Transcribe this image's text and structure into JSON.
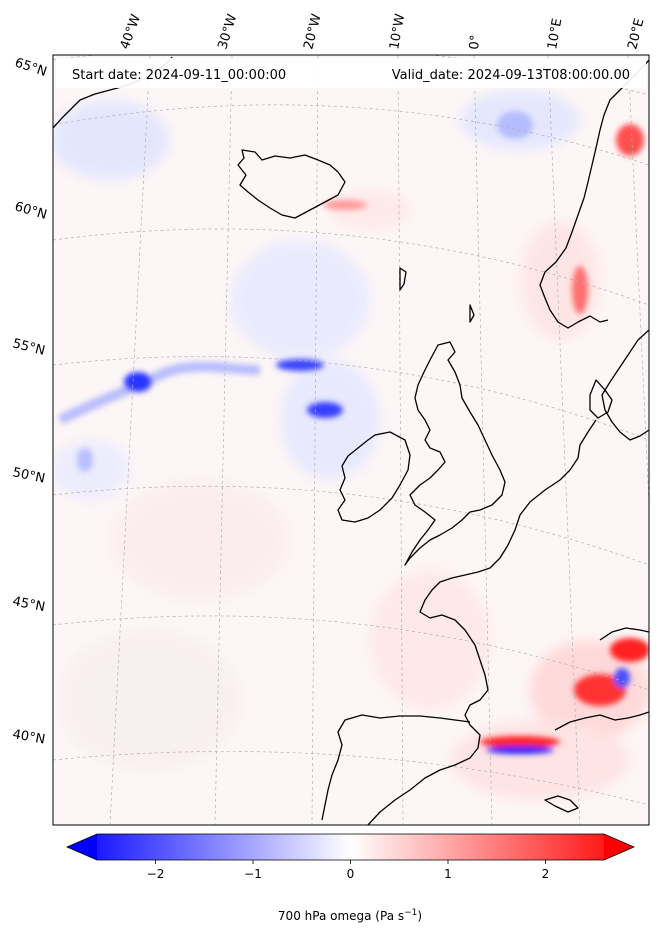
{
  "header": {
    "start_date": "Start date: 2024-09-11_00:00:00",
    "valid_date": "Valid_date: 2024-09-13T08:00:00.00"
  },
  "longitude_labels": [
    "40°W",
    "30°W",
    "20°W",
    "10°W",
    "0°",
    "10°E",
    "20°E"
  ],
  "latitude_labels": [
    "65°N",
    "60°N",
    "55°N",
    "50°N",
    "45°N",
    "40°N"
  ],
  "colorbar": {
    "ticks": [
      -2,
      -1,
      0,
      1,
      2
    ],
    "tick_labels": [
      "−2",
      "−1",
      "0",
      "1",
      "2"
    ],
    "range": [
      -2.6,
      2.6
    ],
    "extend": "both",
    "colormap": "bwr",
    "label": "700 hPa omega (Pa s",
    "label_unit_exp": "−1",
    "label_suffix": ")"
  },
  "colors": {
    "negative": "#0000ff",
    "zero": "#ffffff",
    "positive": "#ff0000",
    "coast": "#000000",
    "grid": "#b0b0b0"
  }
}
